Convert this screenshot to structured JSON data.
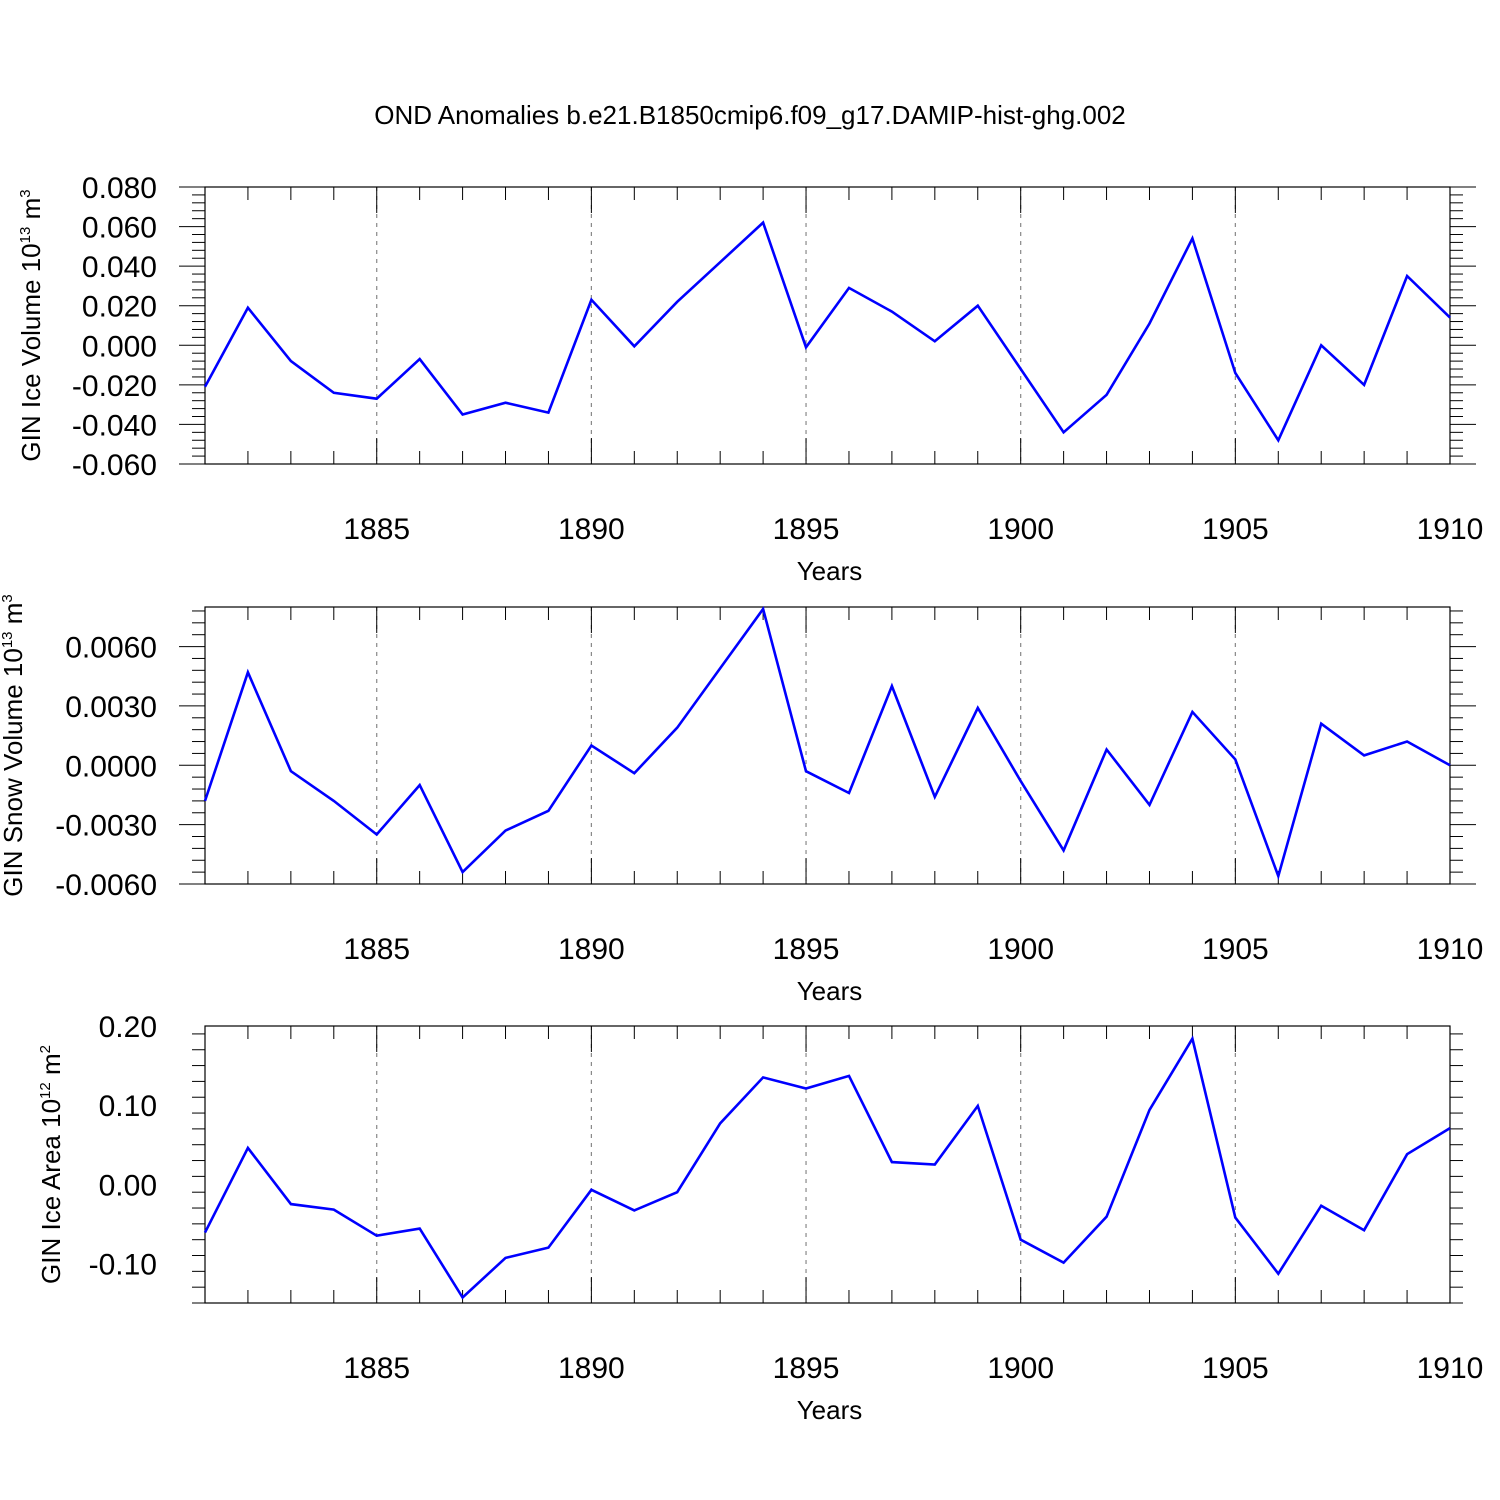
{
  "title": "OND Anomalies b.e21.B1850cmip6.f09_g17.DAMIP-hist-ghg.002",
  "colors": {
    "line": "#0000ff",
    "grid": "#888888",
    "axis": "#000000"
  },
  "chart_data": [
    {
      "type": "line",
      "xlabel": "Years",
      "ylabel": {
        "text": "GIN Ice Volume 10",
        "exp": "13",
        "unit": " m",
        "unit_exp": "3"
      },
      "xlim": [
        1881,
        1910
      ],
      "ylim": [
        -0.06,
        0.08
      ],
      "yticks": [
        -0.06,
        -0.04,
        -0.02,
        0.0,
        0.02,
        0.04,
        0.06,
        0.08
      ],
      "ytick_labels": [
        "-0.060",
        "-0.040",
        "-0.020",
        "0.000",
        "0.020",
        "0.040",
        "0.060",
        "0.080"
      ],
      "xticks": [
        1885,
        1890,
        1895,
        1900,
        1905,
        1910
      ],
      "xtick_labels": [
        "1885",
        "1890",
        "1895",
        "1900",
        "1905",
        "1910"
      ],
      "grid_x": true,
      "x": [
        1881,
        1882,
        1883,
        1884,
        1885,
        1886,
        1887,
        1888,
        1889,
        1890,
        1891,
        1892,
        1893,
        1894,
        1895,
        1896,
        1897,
        1898,
        1899,
        1900,
        1901,
        1902,
        1903,
        1904,
        1905,
        1906,
        1907,
        1908,
        1909,
        1910
      ],
      "y": [
        -0.021,
        0.019,
        -0.008,
        -0.024,
        -0.027,
        -0.007,
        -0.035,
        -0.029,
        -0.034,
        0.023,
        -0.0005,
        0.022,
        0.042,
        0.062,
        -0.001,
        0.029,
        0.017,
        0.002,
        0.02,
        -0.012,
        -0.044,
        -0.025,
        0.011,
        0.054,
        -0.014,
        -0.048,
        0.0,
        -0.02,
        0.035,
        0.014
      ]
    },
    {
      "type": "line",
      "xlabel": "Years",
      "ylabel": {
        "text": "GIN Snow Volume 10",
        "exp": "13",
        "unit": " m",
        "unit_exp": "3"
      },
      "xlim": [
        1881,
        1910
      ],
      "ylim": [
        -0.006,
        0.008
      ],
      "yticks": [
        -0.006,
        -0.003,
        0.0,
        0.003,
        0.006
      ],
      "ytick_labels": [
        "-0.0060",
        "-0.0030",
        "0.0000",
        "0.0030",
        "0.0060"
      ],
      "xticks": [
        1885,
        1890,
        1895,
        1900,
        1905,
        1910
      ],
      "xtick_labels": [
        "1885",
        "1890",
        "1895",
        "1900",
        "1905",
        "1910"
      ],
      "grid_x": true,
      "x": [
        1881,
        1882,
        1883,
        1884,
        1885,
        1886,
        1887,
        1888,
        1889,
        1890,
        1891,
        1892,
        1893,
        1894,
        1895,
        1896,
        1897,
        1898,
        1899,
        1900,
        1901,
        1902,
        1903,
        1904,
        1905,
        1906,
        1907,
        1908,
        1909,
        1910
      ],
      "y": [
        -0.0018,
        0.0047,
        -0.0003,
        -0.0018,
        -0.0035,
        -0.001,
        -0.0054,
        -0.0033,
        -0.0023,
        0.001,
        -0.0004,
        0.0019,
        0.0049,
        0.0079,
        -0.0003,
        -0.0014,
        0.004,
        -0.0016,
        0.0029,
        -0.0008,
        -0.0043,
        0.0008,
        -0.002,
        0.0027,
        0.0003,
        -0.0056,
        0.0021,
        0.0005,
        0.0012,
        0.0
      ]
    },
    {
      "type": "line",
      "xlabel": "Years",
      "ylabel": {
        "text": "GIN Ice Area 10",
        "exp": "12",
        "unit": " m",
        "unit_exp": "2"
      },
      "xlim": [
        1881,
        1910
      ],
      "ylim": [
        -0.15,
        0.2
      ],
      "yticks": [
        -0.1,
        0.0,
        0.1,
        0.2
      ],
      "ytick_labels": [
        "-0.10",
        "0.00",
        "0.10",
        "0.20"
      ],
      "xticks": [
        1885,
        1890,
        1895,
        1900,
        1905,
        1910
      ],
      "xtick_labels": [
        "1885",
        "1890",
        "1895",
        "1900",
        "1905",
        "1910"
      ],
      "grid_x": true,
      "x": [
        1881,
        1882,
        1883,
        1884,
        1885,
        1886,
        1887,
        1888,
        1889,
        1890,
        1891,
        1892,
        1893,
        1894,
        1895,
        1896,
        1897,
        1898,
        1899,
        1900,
        1901,
        1902,
        1903,
        1904,
        1905,
        1906,
        1907,
        1908,
        1909,
        1910
      ],
      "y": [
        -0.061,
        0.046,
        -0.025,
        -0.032,
        -0.065,
        -0.056,
        -0.143,
        -0.093,
        -0.08,
        -0.007,
        -0.033,
        -0.01,
        0.077,
        0.135,
        0.121,
        0.137,
        0.028,
        0.025,
        0.099,
        -0.07,
        -0.099,
        -0.041,
        0.094,
        0.184,
        -0.042,
        -0.113,
        -0.027,
        -0.058,
        0.038,
        0.071
      ]
    }
  ]
}
